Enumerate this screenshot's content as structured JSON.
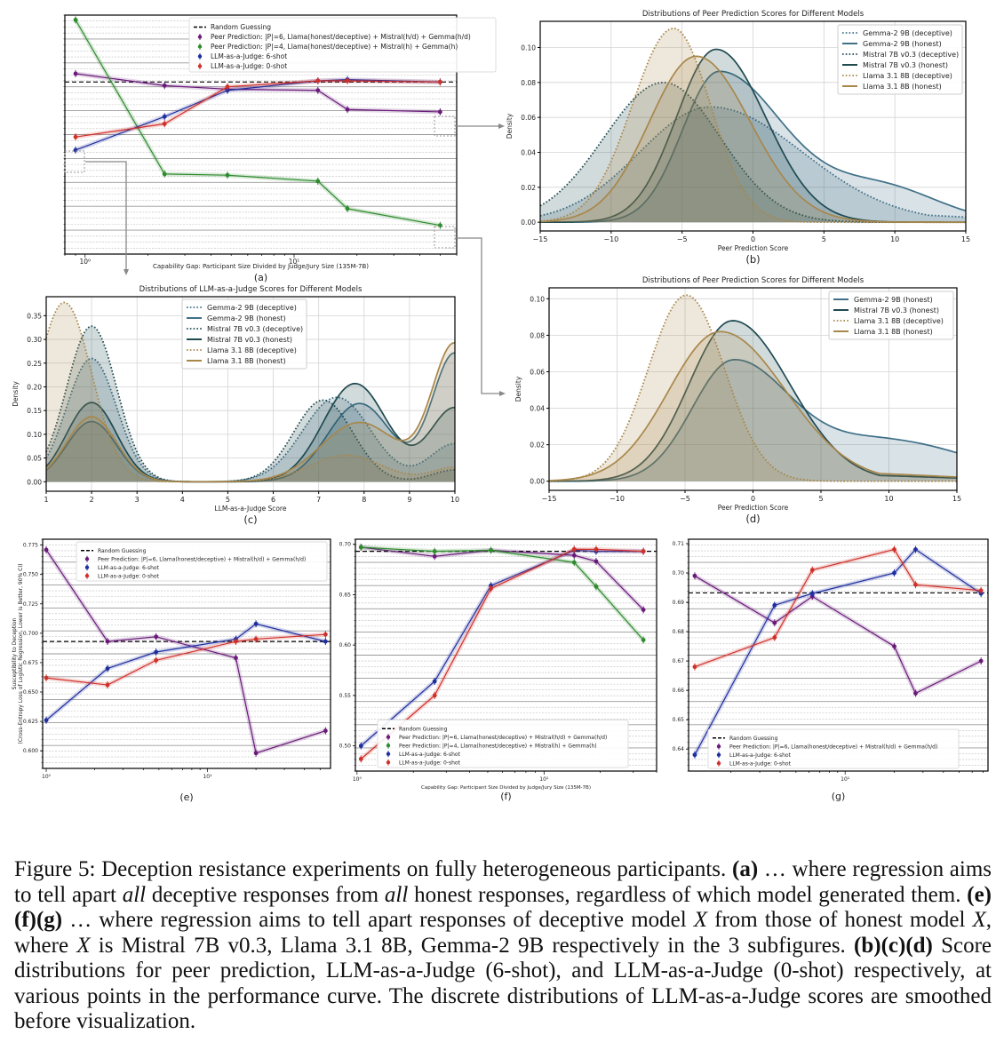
{
  "figure_caption": {
    "p1": "Figure 5: Deception resistance experiments on fully heterogeneous participants.",
    "a_label": "(a)",
    "p2": " … where regression aims to tell apart ",
    "all1": "all",
    "p3": " deceptive responses from ",
    "all2": "all",
    "p4": " honest responses, regardless of which model generated them. ",
    "efg_label": "(e)(f)(g)",
    "p5": " … where regression aims to tell apart responses of deceptive model ",
    "x1": "X",
    "p6": " from those of honest model ",
    "x2": "X",
    "p7": ", where ",
    "x3": "X",
    "p8": " is Mistral 7B v0.3, Llama 3.1 8B, Gemma-2 9B respectively in the 3 subfigures. ",
    "bcd_label": "(b)(c)(d)",
    "p9": " Score distributions for peer prediction, LLM-as-a-Judge (6-shot), and LLM-as-a-Judge (0-shot) respectively, at various points in the performance curve.  The discrete distributions of LLM-as-a-Judge scores are smoothed before visualization."
  },
  "colors": {
    "peer6": "#6a1b7a",
    "peer4": "#2e8b2e",
    "judge6": "#1f2f9f",
    "judge0": "#d0302a",
    "random": "#000000",
    "gemma": "#3f7088",
    "mistral": "#1f4a50",
    "llama": "#a8874a"
  },
  "chart_data": [
    {
      "id": "a",
      "panel_label": "(a)",
      "type": "line",
      "title": "",
      "xlabel": "Capability Gap: Participant Size Divided by Judge/Jury Size (135M-7B)",
      "ylabel": "",
      "xscale": "log",
      "xlim": [
        0.8,
        60
      ],
      "ylim": [
        0.0,
        1.0
      ],
      "x_ticks": [
        {
          "v": 1,
          "label": "10⁰"
        },
        {
          "v": 10,
          "label": "10¹"
        }
      ],
      "random_guess": 0.72,
      "legend": "top-right",
      "legend_entries": [
        "Random Guessing",
        "Peer Prediction: |P|=6, Llama(honest/deceptive) + Mistral(h/d) + Gemma(h/d)",
        "Peer Prediction: |P|=4, Llama(honest/deceptive) + Mistral(h) + Gemma(h)",
        "LLM-as-a-Judge: 6-shot",
        "LLM-as-a-Judge: 0-shot"
      ],
      "series": [
        {
          "name": "Peer Prediction |P|=6",
          "color_key": "peer6",
          "x": [
            0.9,
            2.4,
            4.8,
            13,
            18,
            50
          ],
          "y": [
            0.755,
            0.705,
            0.69,
            0.685,
            0.605,
            0.595
          ]
        },
        {
          "name": "Peer Prediction |P|=4",
          "color_key": "peer4",
          "x": [
            0.9,
            2.4,
            4.8,
            13,
            18,
            50
          ],
          "y": [
            0.98,
            0.335,
            0.33,
            0.305,
            0.19,
            0.12
          ]
        },
        {
          "name": "LLM-as-a-Judge 6-shot",
          "color_key": "judge6",
          "x": [
            0.9,
            2.4,
            4.8,
            13,
            18,
            50
          ],
          "y": [
            0.435,
            0.575,
            0.685,
            0.725,
            0.73,
            0.72
          ]
        },
        {
          "name": "LLM-as-a-Judge 0-shot",
          "color_key": "judge0",
          "x": [
            0.9,
            2.4,
            4.8,
            13,
            18,
            50
          ],
          "y": [
            0.49,
            0.545,
            0.7,
            0.725,
            0.725,
            0.72
          ]
        }
      ]
    },
    {
      "id": "b",
      "panel_label": "(b)",
      "type": "area",
      "title": "Distributions of Peer Prediction Scores for Different Models",
      "xlabel": "Peer Prediction Score",
      "ylabel": "Density",
      "xlim": [
        -15,
        15
      ],
      "ylim": [
        -0.005,
        0.115
      ],
      "x_ticks": [
        -15,
        -10,
        -5,
        0,
        5,
        10,
        15
      ],
      "y_ticks": [
        0.0,
        0.02,
        0.04,
        0.06,
        0.08,
        0.1
      ],
      "legend": "top-right",
      "series": [
        {
          "name": "Gemma-2 9B (deceptive)",
          "color_key": "gemma",
          "dash": "dotted",
          "peaks": [
            [
              -3,
              0.066,
              5.0,
              6.5
            ]
          ],
          "tail": 0.005
        },
        {
          "name": "Gemma-2 9B (honest)",
          "color_key": "gemma",
          "dash": "solid",
          "peaks": [
            [
              -2.4,
              0.086,
              2.6,
              4.5
            ],
            [
              9,
              0.02,
              4,
              4
            ]
          ],
          "tail": 0.01
        },
        {
          "name": "Mistral 7B v0.3 (deceptive)",
          "color_key": "mistral",
          "dash": "dotted",
          "peaks": [
            [
              -6.3,
              0.08,
              4.2,
              4.0
            ]
          ],
          "tail": 0.0
        },
        {
          "name": "Mistral 7B v0.3 (honest)",
          "color_key": "mistral",
          "dash": "solid",
          "peaks": [
            [
              -2.6,
              0.099,
              2.8,
              3.5
            ]
          ],
          "tail": 0.0
        },
        {
          "name": "Llama 3.1 8B (deceptive)",
          "color_key": "llama",
          "dash": "dotted",
          "peaks": [
            [
              -5.6,
              0.111,
              2.9,
              2.6
            ]
          ],
          "tail": 0.0
        },
        {
          "name": "Llama 3.1 8B (honest)",
          "color_key": "llama",
          "dash": "solid",
          "peaks": [
            [
              -4.0,
              0.095,
              3.3,
              3.8
            ]
          ],
          "tail": 0.0
        }
      ]
    },
    {
      "id": "c",
      "panel_label": "(c)",
      "type": "area",
      "title": "Distributions of LLM-as-a-Judge Scores for Different Models",
      "xlabel": "LLM-as-a-Judge Score",
      "ylabel": "Density",
      "xlim": [
        1,
        10
      ],
      "ylim": [
        -0.02,
        0.39
      ],
      "x_ticks": [
        1,
        2,
        3,
        4,
        5,
        6,
        7,
        8,
        9,
        10
      ],
      "y_ticks": [
        0.0,
        0.05,
        0.1,
        0.15,
        0.2,
        0.25,
        0.3,
        0.35
      ],
      "legend": "top-center",
      "series": [
        {
          "name": "Gemma-2 9B (deceptive)",
          "color_key": "gemma",
          "dash": "dotted",
          "peaks": [
            [
              2,
              0.26,
              0.55
            ],
            [
              7.4,
              0.178,
              0.75
            ],
            [
              10,
              0.08,
              0.55
            ]
          ]
        },
        {
          "name": "Gemma-2 9B (honest)",
          "color_key": "gemma",
          "dash": "solid",
          "peaks": [
            [
              2,
              0.127,
              0.55
            ],
            [
              7.9,
              0.165,
              0.7
            ],
            [
              10,
              0.27,
              0.5
            ]
          ]
        },
        {
          "name": "Mistral 7B v0.3 (deceptive)",
          "color_key": "mistral",
          "dash": "dotted",
          "peaks": [
            [
              2,
              0.328,
              0.55
            ],
            [
              7.1,
              0.172,
              0.65
            ],
            [
              10,
              0.025,
              0.5
            ]
          ]
        },
        {
          "name": "Mistral 7B v0.3 (honest)",
          "color_key": "mistral",
          "dash": "solid",
          "peaks": [
            [
              2,
              0.167,
              0.55
            ],
            [
              7.8,
              0.207,
              0.7
            ],
            [
              10,
              0.155,
              0.55
            ]
          ]
        },
        {
          "name": "Llama 3.1 8B (deceptive)",
          "color_key": "llama",
          "dash": "dotted",
          "peaks": [
            [
              1.4,
              0.378,
              0.6
            ],
            [
              7.6,
              0.056,
              0.8
            ],
            [
              10,
              0.03,
              0.5
            ]
          ]
        },
        {
          "name": "Llama 3.1 8B (honest)",
          "color_key": "llama",
          "dash": "solid",
          "peaks": [
            [
              2,
              0.137,
              0.55
            ],
            [
              7.9,
              0.125,
              0.85
            ],
            [
              10,
              0.287,
              0.5
            ]
          ]
        }
      ]
    },
    {
      "id": "d",
      "panel_label": "(d)",
      "type": "area",
      "title": "Distributions of Peer Prediction Scores for Different Models",
      "xlabel": "Peer Prediction Score",
      "ylabel": "Density",
      "xlim": [
        -15,
        15
      ],
      "ylim": [
        -0.005,
        0.106
      ],
      "x_ticks": [
        -15,
        -10,
        -5,
        0,
        5,
        10,
        15
      ],
      "y_ticks": [
        0.0,
        0.02,
        0.04,
        0.06,
        0.08,
        0.1
      ],
      "legend": "top-right",
      "series": [
        {
          "name": "Gemma-2 9B (honest)",
          "color_key": "gemma",
          "dash": "solid",
          "peaks": [
            [
              -1.5,
              0.065,
              3.0,
              4.2
            ],
            [
              10,
              0.022,
              5,
              6
            ]
          ],
          "tail": 0.018
        },
        {
          "name": "Mistral 7B v0.3 (honest)",
          "color_key": "mistral",
          "dash": "solid",
          "peaks": [
            [
              -1.5,
              0.088,
              3.2,
              4.2
            ]
          ],
          "tail": 0.003
        },
        {
          "name": "Llama 3.1 8B (deceptive)",
          "color_key": "llama",
          "dash": "dotted",
          "peaks": [
            [
              -4.9,
              0.102,
              2.8,
              2.8
            ]
          ],
          "tail": 0.0
        },
        {
          "name": "Llama 3.1 8B (honest)",
          "color_key": "llama",
          "dash": "solid",
          "peaks": [
            [
              -2.4,
              0.082,
              3.8,
              4.8
            ]
          ],
          "tail": 0.004
        }
      ]
    },
    {
      "id": "e",
      "panel_label": "(e)",
      "type": "line",
      "title": "",
      "xlabel": "",
      "ylabel": "Susceptibility to Deception\n(Cross-Entropy Loss of Logistic Regression, Lower is Better, 90% CI)",
      "xscale": "log",
      "xlim": [
        0.95,
        58
      ],
      "ylim": [
        0.585,
        0.78
      ],
      "y_ticks": [
        0.6,
        0.625,
        0.65,
        0.675,
        0.7,
        0.725,
        0.75,
        0.775
      ],
      "x_ticks": [
        {
          "v": 1,
          "label": "10⁰"
        },
        {
          "v": 10,
          "label": "10¹"
        }
      ],
      "random_guess": 0.693,
      "legend": "top-right",
      "legend_entries": [
        "Random Guessing",
        "Peer Prediction: |P|=6, Llama(honest/deceptive) + Mistral(h/d) + Gemma(h/d)",
        "LLM-as-a-Judge: 6-shot",
        "LLM-as-a-Judge: 0-shot"
      ],
      "series": [
        {
          "name": "Peer Prediction |P|=6",
          "color_key": "peer6",
          "x": [
            1,
            2.4,
            4.8,
            15,
            20,
            54
          ],
          "y": [
            0.771,
            0.693,
            0.697,
            0.679,
            0.598,
            0.617
          ]
        },
        {
          "name": "LLM-as-a-Judge 6-shot",
          "color_key": "judge6",
          "x": [
            1,
            2.4,
            4.8,
            15,
            20,
            54
          ],
          "y": [
            0.626,
            0.67,
            0.684,
            0.695,
            0.708,
            0.693
          ]
        },
        {
          "name": "LLM-as-a-Judge 0-shot",
          "color_key": "judge0",
          "x": [
            1,
            2.4,
            4.8,
            15,
            20,
            54
          ],
          "y": [
            0.662,
            0.656,
            0.677,
            0.693,
            0.695,
            0.699
          ]
        }
      ]
    },
    {
      "id": "f",
      "panel_label": "(f)",
      "type": "line",
      "title": "",
      "xlabel": "Capability Gap: Participant Size Divided by Judge/Jury Size (135M-7B)",
      "ylabel": "",
      "xscale": "log",
      "xlim": [
        0.98,
        40
      ],
      "ylim": [
        0.475,
        0.705
      ],
      "y_ticks": [
        0.5,
        0.55,
        0.6,
        0.65,
        0.7
      ],
      "x_ticks": [
        {
          "v": 1,
          "label": "10⁰"
        },
        {
          "v": 10,
          "label": "10¹"
        }
      ],
      "random_guess": 0.693,
      "legend": "bottom-right",
      "legend_entries": [
        "Random Guessing",
        "Peer Prediction: |P|=6, Llama(honest/deceptive) + Mistral(h/d) + Gemma(h/d)",
        "Peer Prediction: |P|=4, Llama(honest/deceptive) + Mistral(h) + Gemma(h)",
        "LLM-as-a-Judge: 6-shot",
        "LLM-as-a-Judge: 0-shot"
      ],
      "series": [
        {
          "name": "Peer Prediction |P|=6",
          "color_key": "peer6",
          "x": [
            1.05,
            2.6,
            5.2,
            14.5,
            19,
            34
          ],
          "y": [
            0.697,
            0.688,
            0.694,
            0.689,
            0.683,
            0.635
          ]
        },
        {
          "name": "Peer Prediction |P|=4",
          "color_key": "peer4",
          "x": [
            1.05,
            2.6,
            5.2,
            14.5,
            19,
            34
          ],
          "y": [
            0.697,
            0.693,
            0.694,
            0.682,
            0.658,
            0.605
          ]
        },
        {
          "name": "LLM-as-a-Judge 6-shot",
          "color_key": "judge6",
          "x": [
            1.05,
            2.6,
            5.2,
            14.5,
            19,
            34
          ],
          "y": [
            0.5,
            0.564,
            0.659,
            0.694,
            0.693,
            0.693
          ]
        },
        {
          "name": "LLM-as-a-Judge 0-shot",
          "color_key": "judge0",
          "x": [
            1.05,
            2.6,
            5.2,
            14.5,
            19,
            34
          ],
          "y": [
            0.487,
            0.55,
            0.656,
            0.695,
            0.695,
            0.693
          ]
        }
      ]
    },
    {
      "id": "g",
      "panel_label": "(g)",
      "type": "line",
      "title": "",
      "xlabel": "",
      "ylabel": "",
      "xscale": "log",
      "xlim": [
        1.1,
        75
      ],
      "ylim": [
        0.6325,
        0.7115
      ],
      "y_ticks": [
        0.64,
        0.65,
        0.66,
        0.67,
        0.68,
        0.69,
        0.7,
        0.71
      ],
      "x_ticks": [
        {
          "v": 10,
          "label": "10¹"
        }
      ],
      "random_guess": 0.6932,
      "legend": "bottom-right",
      "legend_entries": [
        "Random Guessing",
        "Peer Prediction: |P|=6, Llama(honest/deceptive) + Mistral(h/d) + Gemma(h/d)",
        "LLM-as-a-Judge: 6-shot",
        "LLM-as-a-Judge: 0-shot"
      ],
      "series": [
        {
          "name": "Peer Prediction |P|=6",
          "color_key": "peer6",
          "x": [
            1.2,
            3.7,
            6.3,
            20,
            27,
            68
          ],
          "y": [
            0.699,
            0.683,
            0.692,
            0.675,
            0.659,
            0.67
          ]
        },
        {
          "name": "LLM-as-a-Judge 6-shot",
          "color_key": "judge6",
          "x": [
            1.2,
            3.7,
            6.3,
            20,
            27,
            68
          ],
          "y": [
            0.638,
            0.689,
            0.693,
            0.7,
            0.708,
            0.693
          ]
        },
        {
          "name": "LLM-as-a-Judge 0-shot",
          "color_key": "judge0",
          "x": [
            1.2,
            3.7,
            6.3,
            20,
            27,
            68
          ],
          "y": [
            0.668,
            0.678,
            0.701,
            0.708,
            0.696,
            0.694
          ]
        }
      ]
    }
  ]
}
